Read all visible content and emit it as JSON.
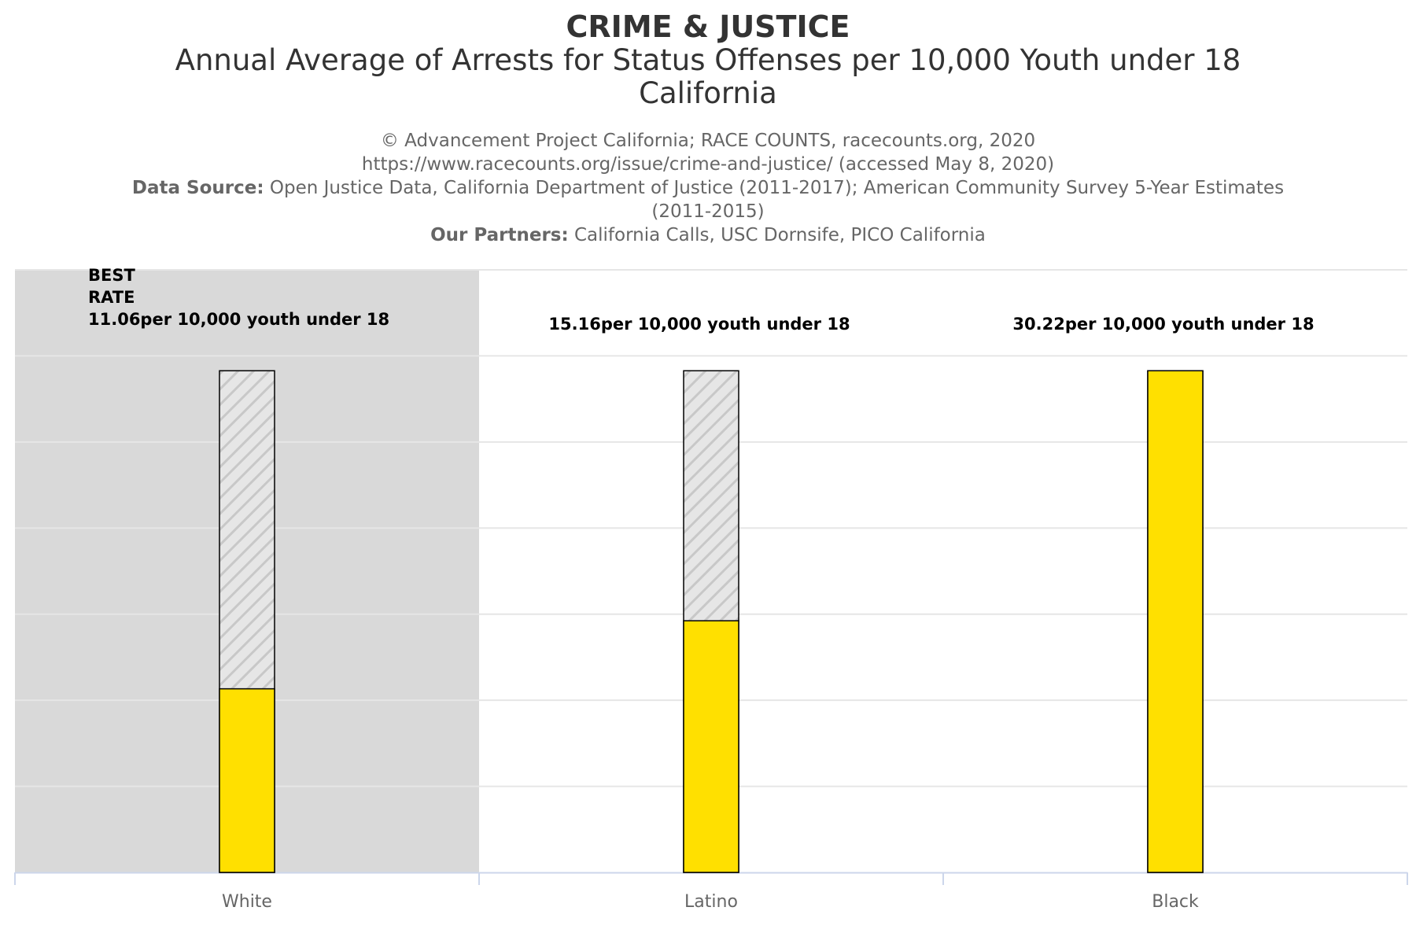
{
  "header": {
    "title": "CRIME & JUSTICE",
    "subtitle_line1": "Annual Average of Arrests for Status Offenses per 10,000 Youth under 18",
    "subtitle_line2": "California",
    "credit_line1": "© Advancement Project California; RACE COUNTS, racecounts.org, 2020",
    "credit_line2": "https://www.racecounts.org/issue/crime-and-justice/ (accessed May 8, 2020)",
    "data_source_label": "Data Source:",
    "data_source_text": "Open Justice Data, California Department of Justice (2011-2017); American Community Survey 5-Year Estimates (2011-2015)",
    "partners_label": "Our Partners:",
    "partners_text": "California Calls, USC Dornsife, PICO California"
  },
  "chart_data": {
    "type": "bar",
    "categories": [
      "White",
      "Latino",
      "Black"
    ],
    "values": [
      11.06,
      15.16,
      30.22
    ],
    "max_reference": 30.22,
    "data_labels": [
      "11.06per 10,000 youth under 18",
      "15.16per 10,000 youth under 18",
      "30.22per 10,000 youth under 18"
    ],
    "best_rate_category": "White",
    "best_rate_label": [
      "BEST",
      "RATE"
    ],
    "ylim": [
      0,
      36.3
    ],
    "grid": true,
    "legend": "none",
    "colors": {
      "bar": "#FFE000",
      "bar_outline": "#000000",
      "hatch_background": "#E6E6E6",
      "hatch_line": "#C8C8C8",
      "best_band": "#D9D9D9",
      "grid": "#E6E6E6",
      "axis": "#CCD6EB",
      "tick_label": "#666666",
      "data_label": "#000000"
    }
  }
}
